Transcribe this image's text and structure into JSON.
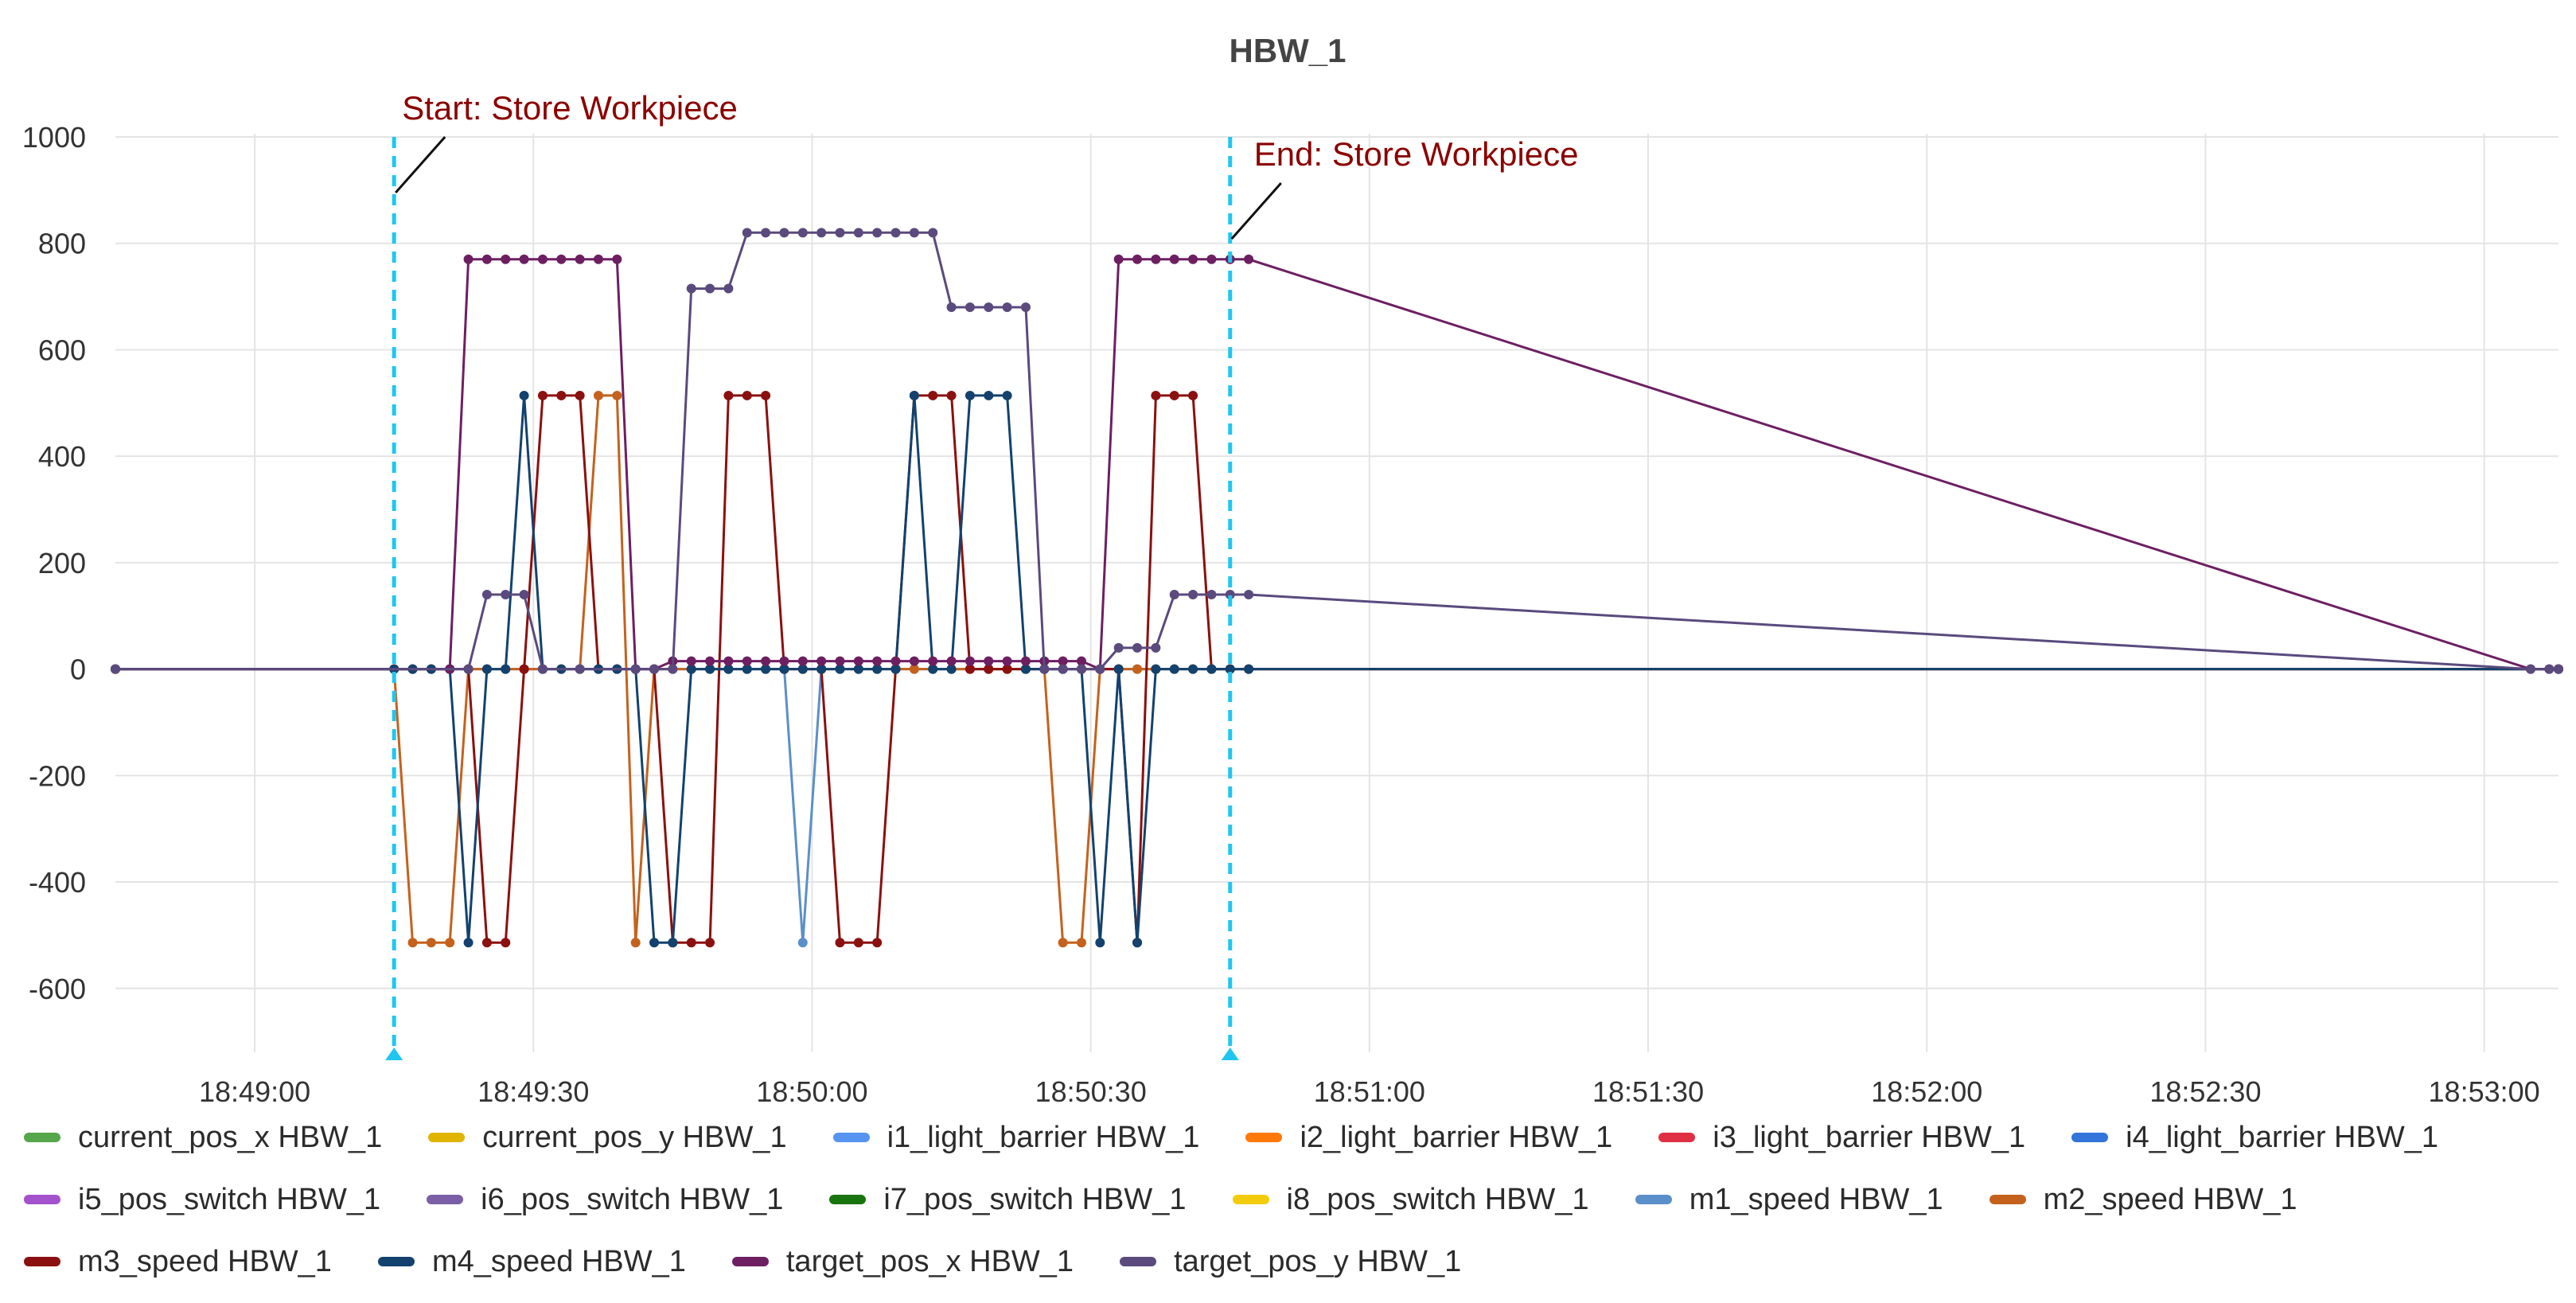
{
  "chart_data": {
    "type": "line",
    "title": "HBW_1",
    "xlabel": "",
    "ylabel": "",
    "x_type": "time",
    "xlim": [
      "18:48:45",
      "18:53:08"
    ],
    "ylim": [
      -720,
      1000
    ],
    "yticks": [
      1000,
      800,
      600,
      400,
      200,
      0,
      -200,
      -400,
      -600
    ],
    "xticks": [
      "18:49:00",
      "18:49:30",
      "18:50:00",
      "18:50:30",
      "18:51:00",
      "18:51:30",
      "18:52:00",
      "18:52:30",
      "18:53:00"
    ],
    "grid": true,
    "legend_position": "bottom",
    "annotations": [
      {
        "text": "Start: Store Workpiece",
        "time": "18:49:15",
        "color": "#8b0000"
      },
      {
        "text": "End: Store Workpiece",
        "time": "18:50:45",
        "color": "#8b0000"
      }
    ],
    "series": [
      {
        "name": "current_pos_x HBW_1",
        "color": "#56a64b",
        "x": [],
        "y": []
      },
      {
        "name": "current_pos_y HBW_1",
        "color": "#e0b400",
        "x": [],
        "y": []
      },
      {
        "name": "i1_light_barrier HBW_1",
        "color": "#5794f2",
        "x": [],
        "y": []
      },
      {
        "name": "i2_light_barrier HBW_1",
        "color": "#ff780a",
        "x": [],
        "y": []
      },
      {
        "name": "i3_light_barrier HBW_1",
        "color": "#e02f44",
        "x": [],
        "y": []
      },
      {
        "name": "i4_light_barrier HBW_1",
        "color": "#3274d9",
        "x": [],
        "y": []
      },
      {
        "name": "i5_pos_switch HBW_1",
        "color": "#a352cc",
        "x": [],
        "y": []
      },
      {
        "name": "i6_pos_switch HBW_1",
        "color": "#7b5fa6",
        "x": [],
        "y": []
      },
      {
        "name": "i7_pos_switch HBW_1",
        "color": "#19730e",
        "x": [],
        "y": []
      },
      {
        "name": "i8_pos_switch HBW_1",
        "color": "#f2cc0c",
        "x": [],
        "y": []
      },
      {
        "name": "m1_speed HBW_1",
        "color": "#5b8fc9",
        "x": [
          "18:48:45",
          "18:49:15",
          "18:49:17",
          "18:49:19",
          "18:49:21",
          "18:49:23",
          "18:49:25",
          "18:49:27",
          "18:49:29",
          "18:49:31",
          "18:49:33",
          "18:49:35",
          "18:49:37",
          "18:49:39",
          "18:49:41",
          "18:49:43",
          "18:49:45",
          "18:49:47",
          "18:49:49",
          "18:49:51",
          "18:49:53",
          "18:49:55",
          "18:49:57",
          "18:49:59",
          "18:50:01",
          "18:50:03",
          "18:50:05",
          "18:50:07",
          "18:50:09",
          "18:50:11",
          "18:50:13",
          "18:50:15",
          "18:50:17",
          "18:50:19",
          "18:50:21",
          "18:50:23",
          "18:50:25",
          "18:50:27",
          "18:50:29",
          "18:50:31",
          "18:50:33",
          "18:50:35",
          "18:50:37",
          "18:50:39",
          "18:50:41",
          "18:50:43",
          "18:50:45",
          "18:50:47",
          "18:53:08"
        ],
        "y": [
          0,
          0,
          0,
          0,
          0,
          0,
          0,
          0,
          0,
          0,
          0,
          0,
          0,
          0,
          0,
          0,
          0,
          0,
          0,
          0,
          0,
          0,
          0,
          -514,
          0,
          0,
          0,
          0,
          0,
          0,
          0,
          0,
          0,
          0,
          0,
          0,
          0,
          0,
          0,
          0,
          0,
          0,
          0,
          0,
          0,
          0,
          0,
          0,
          0
        ]
      },
      {
        "name": "m2_speed HBW_1",
        "color": "#c4621d",
        "x": [
          "18:48:45",
          "18:49:15",
          "18:49:17",
          "18:49:19",
          "18:49:21",
          "18:49:23",
          "18:49:25",
          "18:49:27",
          "18:49:29",
          "18:49:31",
          "18:49:33",
          "18:49:35",
          "18:49:37",
          "18:49:39",
          "18:49:41",
          "18:49:43",
          "18:49:45",
          "18:49:47",
          "18:49:49",
          "18:49:51",
          "18:49:53",
          "18:49:55",
          "18:49:57",
          "18:49:59",
          "18:50:01",
          "18:50:03",
          "18:50:05",
          "18:50:07",
          "18:50:09",
          "18:50:11",
          "18:50:13",
          "18:50:15",
          "18:50:17",
          "18:50:19",
          "18:50:21",
          "18:50:23",
          "18:50:25",
          "18:50:27",
          "18:50:29",
          "18:50:31",
          "18:50:33",
          "18:50:35",
          "18:50:37",
          "18:50:39",
          "18:50:41",
          "18:50:43",
          "18:50:45",
          "18:50:47",
          "18:53:08"
        ],
        "y": [
          0,
          0,
          -514,
          -514,
          -514,
          0,
          0,
          0,
          0,
          0,
          0,
          0,
          514,
          514,
          -514,
          0,
          0,
          0,
          0,
          0,
          0,
          0,
          0,
          0,
          0,
          0,
          0,
          0,
          0,
          0,
          0,
          0,
          0,
          0,
          0,
          0,
          0,
          -514,
          -514,
          0,
          0,
          0,
          0,
          0,
          0,
          0,
          0,
          0,
          0
        ]
      },
      {
        "name": "m3_speed HBW_1",
        "color": "#8b1010",
        "x": [
          "18:48:45",
          "18:49:15",
          "18:49:17",
          "18:49:19",
          "18:49:21",
          "18:49:23",
          "18:49:25",
          "18:49:27",
          "18:49:29",
          "18:49:31",
          "18:49:33",
          "18:49:35",
          "18:49:37",
          "18:49:39",
          "18:49:41",
          "18:49:43",
          "18:49:45",
          "18:49:47",
          "18:49:49",
          "18:49:51",
          "18:49:53",
          "18:49:55",
          "18:49:57",
          "18:49:59",
          "18:50:01",
          "18:50:03",
          "18:50:05",
          "18:50:07",
          "18:50:09",
          "18:50:11",
          "18:50:13",
          "18:50:15",
          "18:50:17",
          "18:50:19",
          "18:50:21",
          "18:50:23",
          "18:50:25",
          "18:50:27",
          "18:50:29",
          "18:50:31",
          "18:50:33",
          "18:50:35",
          "18:50:37",
          "18:50:39",
          "18:50:41",
          "18:50:43",
          "18:50:45",
          "18:50:47",
          "18:53:08"
        ],
        "y": [
          0,
          0,
          0,
          0,
          0,
          0,
          -514,
          -514,
          0,
          514,
          514,
          514,
          0,
          0,
          0,
          0,
          -514,
          -514,
          -514,
          514,
          514,
          514,
          0,
          0,
          0,
          -514,
          -514,
          -514,
          0,
          514,
          514,
          514,
          0,
          0,
          0,
          0,
          0,
          0,
          0,
          0,
          0,
          -514,
          514,
          514,
          514,
          0,
          0,
          0,
          0
        ]
      },
      {
        "name": "m4_speed HBW_1",
        "color": "#13426e",
        "x": [
          "18:48:45",
          "18:49:15",
          "18:49:17",
          "18:49:19",
          "18:49:21",
          "18:49:23",
          "18:49:25",
          "18:49:27",
          "18:49:29",
          "18:49:31",
          "18:49:33",
          "18:49:35",
          "18:49:37",
          "18:49:39",
          "18:49:41",
          "18:49:43",
          "18:49:45",
          "18:49:47",
          "18:49:49",
          "18:49:51",
          "18:49:53",
          "18:49:55",
          "18:49:57",
          "18:49:59",
          "18:50:01",
          "18:50:03",
          "18:50:05",
          "18:50:07",
          "18:50:09",
          "18:50:11",
          "18:50:13",
          "18:50:15",
          "18:50:17",
          "18:50:19",
          "18:50:21",
          "18:50:23",
          "18:50:25",
          "18:50:27",
          "18:50:29",
          "18:50:31",
          "18:50:33",
          "18:50:35",
          "18:50:37",
          "18:50:39",
          "18:50:41",
          "18:50:43",
          "18:50:45",
          "18:50:47",
          "18:53:08"
        ],
        "y": [
          0,
          0,
          0,
          0,
          0,
          -514,
          0,
          0,
          514,
          0,
          0,
          0,
          0,
          0,
          0,
          -514,
          -514,
          0,
          0,
          0,
          0,
          0,
          0,
          0,
          0,
          0,
          0,
          0,
          0,
          514,
          0,
          0,
          514,
          514,
          514,
          0,
          0,
          0,
          0,
          -514,
          0,
          -514,
          0,
          0,
          0,
          0,
          0,
          0,
          0
        ]
      },
      {
        "name": "target_pos_x HBW_1",
        "color": "#6d1f62",
        "x": [
          "18:48:45",
          "18:49:21",
          "18:49:23",
          "18:49:25",
          "18:49:27",
          "18:49:29",
          "18:49:31",
          "18:49:33",
          "18:49:35",
          "18:49:37",
          "18:49:39",
          "18:49:41",
          "18:49:43",
          "18:49:45",
          "18:49:47",
          "18:49:49",
          "18:49:51",
          "18:49:53",
          "18:49:55",
          "18:49:57",
          "18:49:59",
          "18:50:01",
          "18:50:03",
          "18:50:05",
          "18:50:07",
          "18:50:09",
          "18:50:11",
          "18:50:13",
          "18:50:15",
          "18:50:17",
          "18:50:19",
          "18:50:21",
          "18:50:23",
          "18:50:25",
          "18:50:27",
          "18:50:29",
          "18:50:31",
          "18:50:33",
          "18:50:35",
          "18:50:37",
          "18:50:39",
          "18:50:41",
          "18:50:43",
          "18:50:45",
          "18:50:47",
          "18:53:05",
          "18:53:07",
          "18:53:08"
        ],
        "y": [
          0,
          0,
          770,
          770,
          770,
          770,
          770,
          770,
          770,
          770,
          770,
          0,
          0,
          15,
          15,
          15,
          15,
          15,
          15,
          15,
          15,
          15,
          15,
          15,
          15,
          15,
          15,
          15,
          15,
          15,
          15,
          15,
          15,
          15,
          15,
          15,
          0,
          770,
          770,
          770,
          770,
          770,
          770,
          770,
          770,
          0,
          0,
          0
        ]
      },
      {
        "name": "target_pos_y HBW_1",
        "color": "#5a4a7d",
        "x": [
          "18:48:45",
          "18:49:23",
          "18:49:25",
          "18:49:27",
          "18:49:29",
          "18:49:31",
          "18:49:35",
          "18:49:41",
          "18:49:43",
          "18:49:45",
          "18:49:47",
          "18:49:49",
          "18:49:51",
          "18:49:53",
          "18:49:55",
          "18:49:57",
          "18:49:59",
          "18:50:01",
          "18:50:03",
          "18:50:05",
          "18:50:07",
          "18:50:09",
          "18:50:11",
          "18:50:13",
          "18:50:15",
          "18:50:17",
          "18:50:19",
          "18:50:21",
          "18:50:23",
          "18:50:25",
          "18:50:27",
          "18:50:29",
          "18:50:31",
          "18:50:33",
          "18:50:35",
          "18:50:37",
          "18:50:39",
          "18:50:41",
          "18:50:43",
          "18:50:45",
          "18:50:47",
          "18:53:05",
          "18:53:07",
          "18:53:08"
        ],
        "y": [
          0,
          0,
          140,
          140,
          140,
          0,
          0,
          0,
          0,
          0,
          715,
          715,
          715,
          820,
          820,
          820,
          820,
          820,
          820,
          820,
          820,
          820,
          820,
          820,
          680,
          680,
          680,
          680,
          680,
          0,
          0,
          0,
          0,
          40,
          40,
          40,
          140,
          140,
          140,
          140,
          140,
          0,
          0,
          0
        ]
      }
    ]
  }
}
